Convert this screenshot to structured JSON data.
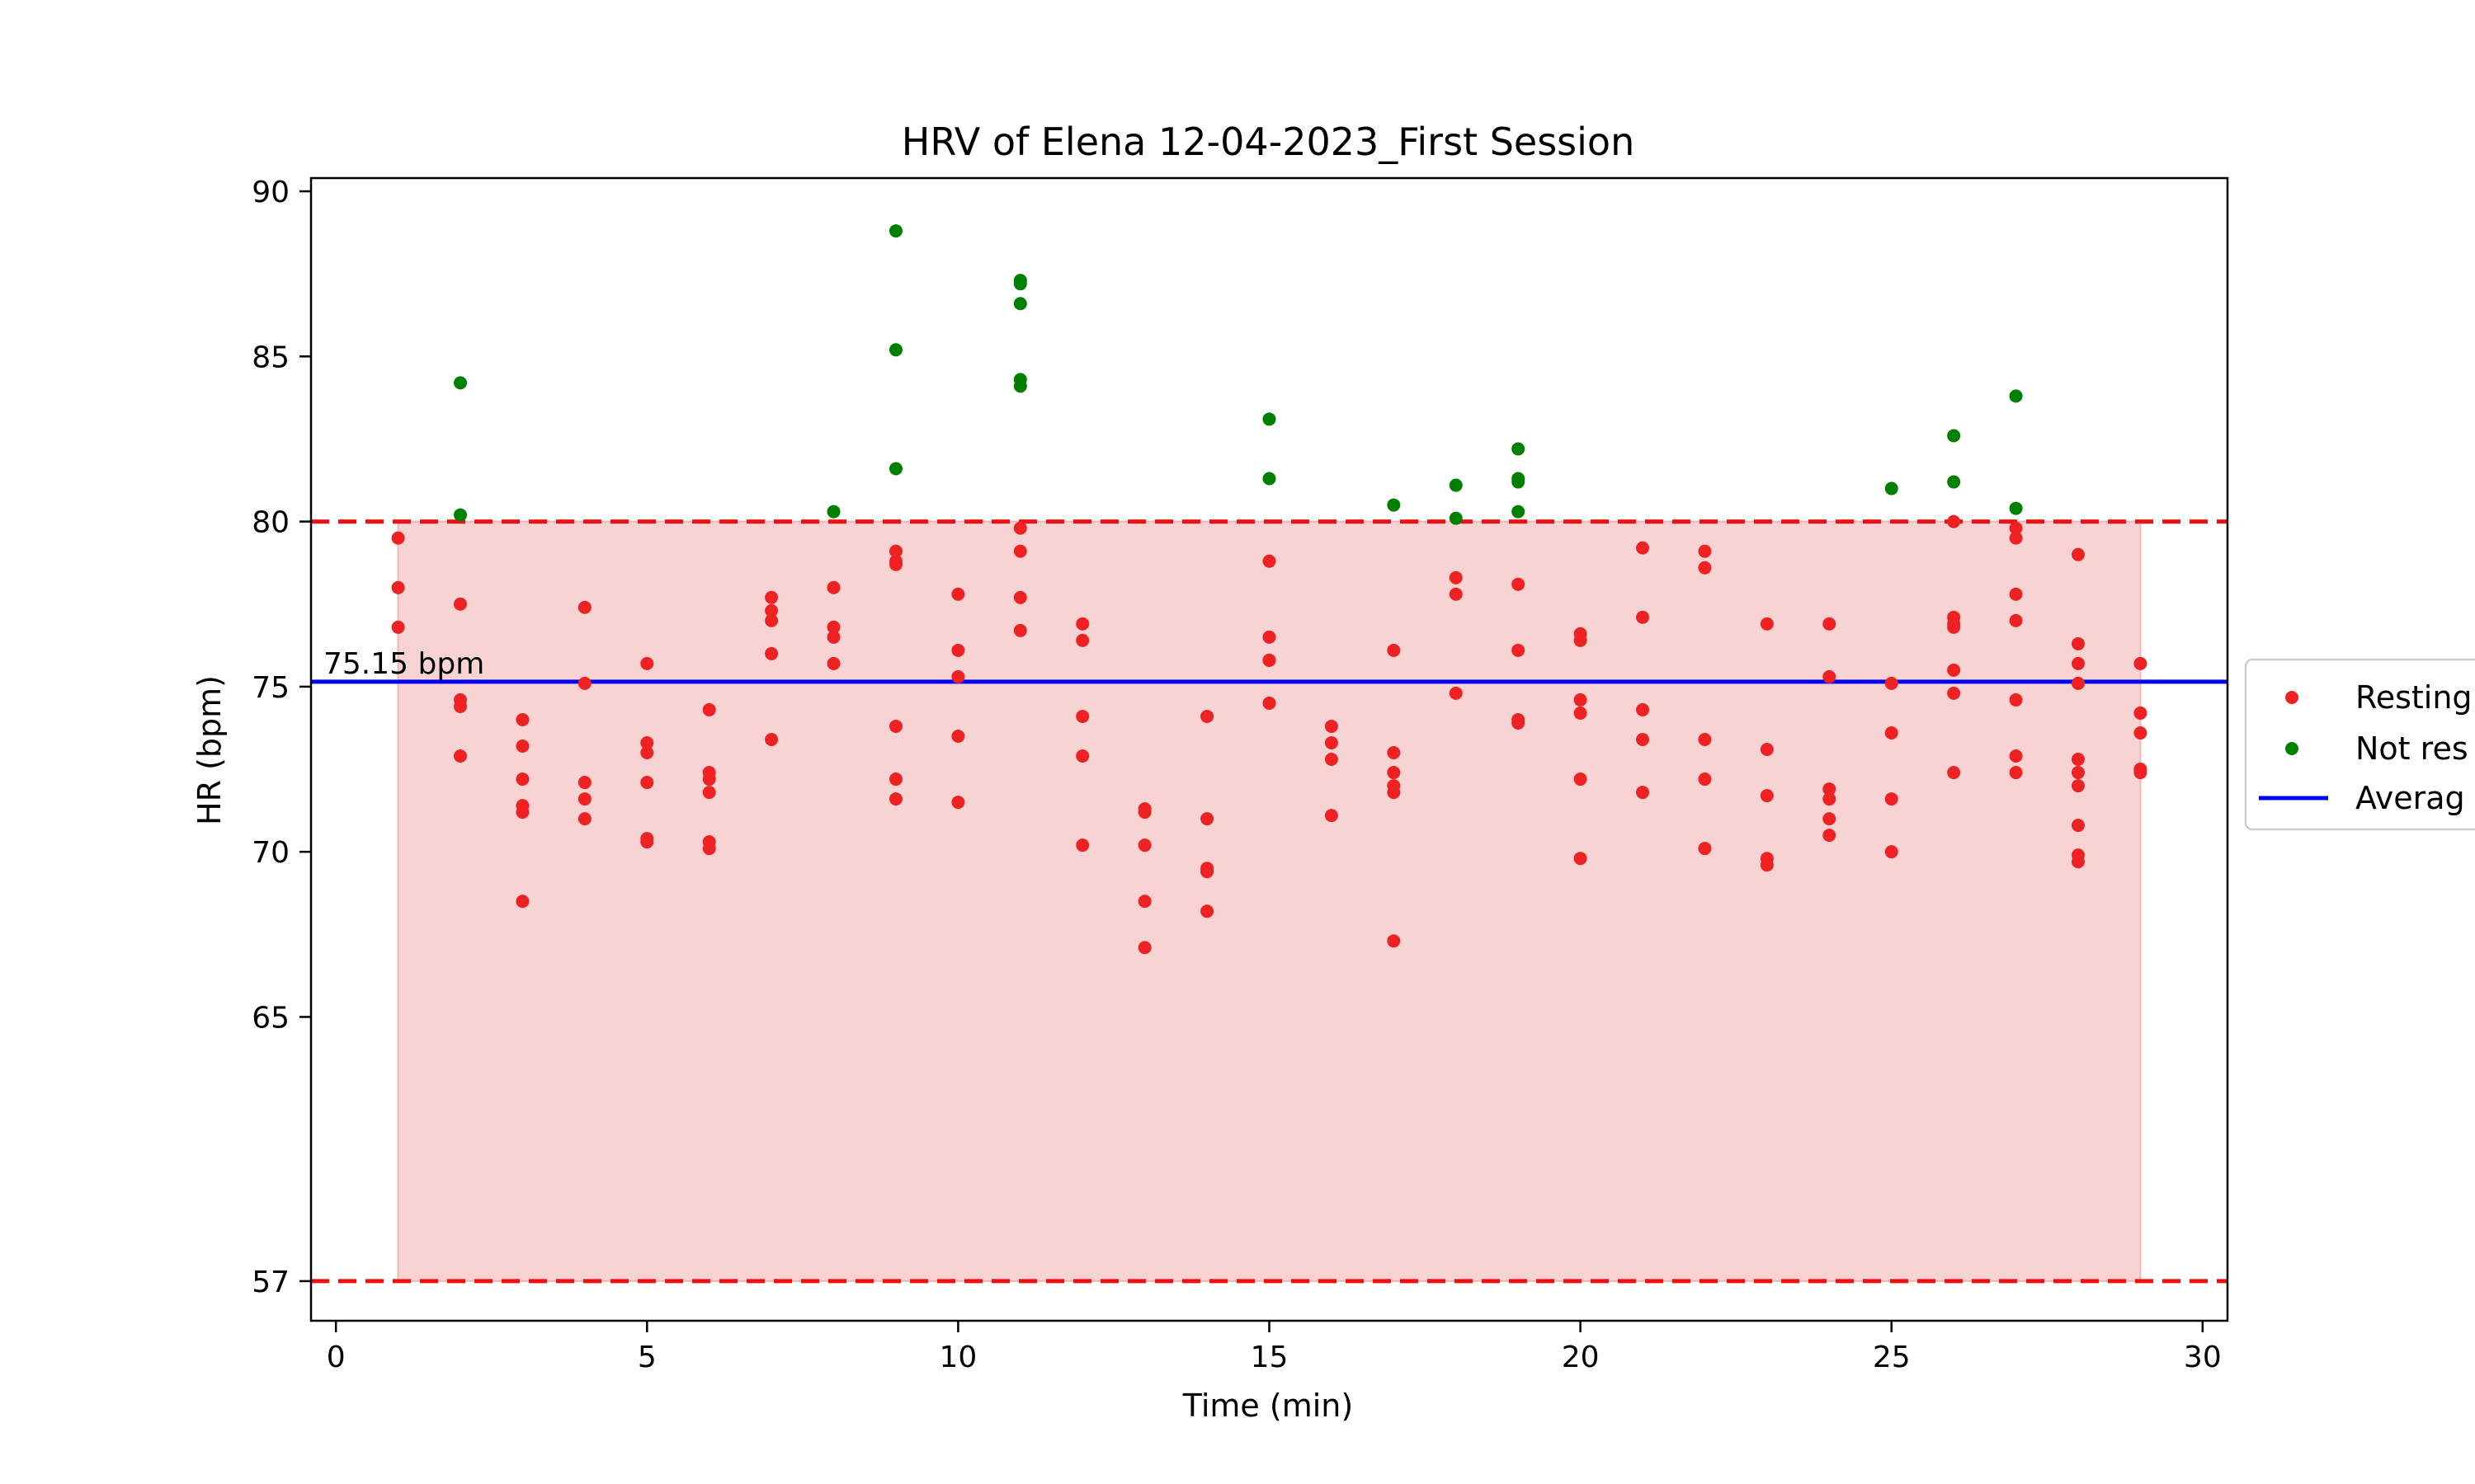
{
  "chart_data": {
    "type": "scatter",
    "title": "HRV of Elena 12-04-2023_First Session",
    "xlabel": "Time (min)",
    "ylabel": "HR (bpm)",
    "xlim": [
      -0.4,
      30.4
    ],
    "ylim": [
      55.8,
      90.4
    ],
    "x_ticks": [
      0,
      5,
      10,
      15,
      20,
      25,
      30
    ],
    "y_ticks": [
      57,
      65,
      70,
      75,
      80,
      85,
      90
    ],
    "grid": false,
    "legend_position": "center-right",
    "resting_band": {
      "x_range": [
        1,
        29
      ],
      "y_range": [
        57,
        80
      ],
      "color": "#f8d3d3"
    },
    "threshold_lines": [
      {
        "y": 80,
        "color": "#ee1111",
        "style": "dashed"
      },
      {
        "y": 57,
        "color": "#ee1111",
        "style": "dashed"
      }
    ],
    "average": {
      "y": 75.15,
      "label": "75.15 bpm",
      "color": "#0000ee"
    },
    "legend": [
      "Resting",
      "Not res",
      "Averag"
    ],
    "series": [
      {
        "name": "Resting",
        "color": "#ee2222",
        "points": [
          [
            1,
            79.5
          ],
          [
            1,
            78
          ],
          [
            1,
            76.8
          ],
          [
            2,
            77.5
          ],
          [
            2,
            74.6
          ],
          [
            2,
            74.4
          ],
          [
            2,
            72.9
          ],
          [
            3,
            74
          ],
          [
            3,
            73.2
          ],
          [
            3,
            72.2
          ],
          [
            3,
            71.4
          ],
          [
            3,
            71.2
          ],
          [
            3,
            68.5
          ],
          [
            4,
            77.4
          ],
          [
            4,
            75.1
          ],
          [
            4,
            72.1
          ],
          [
            4,
            71.6
          ],
          [
            4,
            71
          ],
          [
            5,
            75.7
          ],
          [
            5,
            73.3
          ],
          [
            5,
            73
          ],
          [
            5,
            72.1
          ],
          [
            5,
            70.4
          ],
          [
            5,
            70.3
          ],
          [
            6,
            74.3
          ],
          [
            6,
            72.4
          ],
          [
            6,
            72.2
          ],
          [
            6,
            71.8
          ],
          [
            6,
            70.3
          ],
          [
            6,
            70.1
          ],
          [
            7,
            77.7
          ],
          [
            7,
            77.3
          ],
          [
            7,
            77
          ],
          [
            7,
            76
          ],
          [
            7,
            73.4
          ],
          [
            8,
            78
          ],
          [
            8,
            76.8
          ],
          [
            8,
            76.5
          ],
          [
            8,
            75.7
          ],
          [
            9,
            79.1
          ],
          [
            9,
            78.8
          ],
          [
            9,
            78.7
          ],
          [
            9,
            73.8
          ],
          [
            9,
            72.2
          ],
          [
            9,
            71.6
          ],
          [
            10,
            77.8
          ],
          [
            10,
            76.1
          ],
          [
            10,
            75.3
          ],
          [
            10,
            73.5
          ],
          [
            10,
            71.5
          ],
          [
            11,
            79.8
          ],
          [
            11,
            79.1
          ],
          [
            11,
            77.7
          ],
          [
            11,
            76.7
          ],
          [
            12,
            76.9
          ],
          [
            12,
            76.4
          ],
          [
            12,
            74.1
          ],
          [
            12,
            72.9
          ],
          [
            12,
            70.2
          ],
          [
            13,
            71.3
          ],
          [
            13,
            71.2
          ],
          [
            13,
            70.2
          ],
          [
            13,
            68.5
          ],
          [
            13,
            67.1
          ],
          [
            14,
            74.1
          ],
          [
            14,
            71
          ],
          [
            14,
            69.5
          ],
          [
            14,
            69.4
          ],
          [
            14,
            68.2
          ],
          [
            15,
            78.8
          ],
          [
            15,
            76.5
          ],
          [
            15,
            75.8
          ],
          [
            15,
            75.8
          ],
          [
            15,
            74.5
          ],
          [
            16,
            73.8
          ],
          [
            16,
            73.3
          ],
          [
            16,
            72.8
          ],
          [
            16,
            71.1
          ],
          [
            17,
            76.1
          ],
          [
            17,
            73
          ],
          [
            17,
            72.4
          ],
          [
            17,
            72
          ],
          [
            17,
            71.8
          ],
          [
            17,
            67.3
          ],
          [
            18,
            78.3
          ],
          [
            18,
            77.8
          ],
          [
            18,
            74.8
          ],
          [
            19,
            78.1
          ],
          [
            19,
            76.1
          ],
          [
            19,
            74
          ],
          [
            19,
            73.9
          ],
          [
            20,
            76.6
          ],
          [
            20,
            76.4
          ],
          [
            20,
            74.6
          ],
          [
            20,
            74.2
          ],
          [
            20,
            72.2
          ],
          [
            20,
            69.8
          ],
          [
            21,
            79.2
          ],
          [
            21,
            77.1
          ],
          [
            21,
            74.3
          ],
          [
            21,
            73.4
          ],
          [
            21,
            71.8
          ],
          [
            22,
            79.1
          ],
          [
            22,
            78.6
          ],
          [
            22,
            73.4
          ],
          [
            22,
            72.2
          ],
          [
            22,
            70.1
          ],
          [
            23,
            76.9
          ],
          [
            23,
            73.1
          ],
          [
            23,
            71.7
          ],
          [
            23,
            69.8
          ],
          [
            23,
            69.6
          ],
          [
            24,
            76.9
          ],
          [
            24,
            75.3
          ],
          [
            24,
            71.9
          ],
          [
            24,
            71.6
          ],
          [
            24,
            71
          ],
          [
            24,
            70.5
          ],
          [
            25,
            75.1
          ],
          [
            25,
            73.6
          ],
          [
            25,
            71.6
          ],
          [
            25,
            70
          ],
          [
            26,
            80
          ],
          [
            26,
            77.1
          ],
          [
            26,
            76.9
          ],
          [
            26,
            76.8
          ],
          [
            26,
            75.5
          ],
          [
            26,
            74.8
          ],
          [
            26,
            72.4
          ],
          [
            27,
            79.8
          ],
          [
            27,
            79.5
          ],
          [
            27,
            77.8
          ],
          [
            27,
            77
          ],
          [
            27,
            74.6
          ],
          [
            27,
            72.9
          ],
          [
            27,
            72.4
          ],
          [
            28,
            79
          ],
          [
            28,
            76.3
          ],
          [
            28,
            75.7
          ],
          [
            28,
            75.1
          ],
          [
            28,
            72.8
          ],
          [
            28,
            72.4
          ],
          [
            28,
            72
          ],
          [
            28,
            70.8
          ],
          [
            28,
            69.9
          ],
          [
            28,
            69.7
          ],
          [
            29,
            75.7
          ],
          [
            29,
            74.2
          ],
          [
            29,
            73.6
          ],
          [
            29,
            72.5
          ],
          [
            29,
            72.4
          ]
        ]
      },
      {
        "name": "Not res",
        "color": "#008000",
        "points": [
          [
            2,
            84.2
          ],
          [
            2,
            80.2
          ],
          [
            8,
            80.3
          ],
          [
            9,
            88.8
          ],
          [
            9,
            85.2
          ],
          [
            9,
            81.6
          ],
          [
            11,
            87.3
          ],
          [
            11,
            87.2
          ],
          [
            11,
            86.6
          ],
          [
            11,
            84.3
          ],
          [
            11,
            84.1
          ],
          [
            15,
            83.1
          ],
          [
            15,
            81.3
          ],
          [
            17,
            80.5
          ],
          [
            18,
            81.1
          ],
          [
            18,
            80.1
          ],
          [
            19,
            82.2
          ],
          [
            19,
            81.3
          ],
          [
            19,
            81.2
          ],
          [
            19,
            80.3
          ],
          [
            25,
            81
          ],
          [
            26,
            82.6
          ],
          [
            26,
            81.2
          ],
          [
            27,
            83.8
          ],
          [
            27,
            80.4
          ]
        ]
      }
    ]
  }
}
